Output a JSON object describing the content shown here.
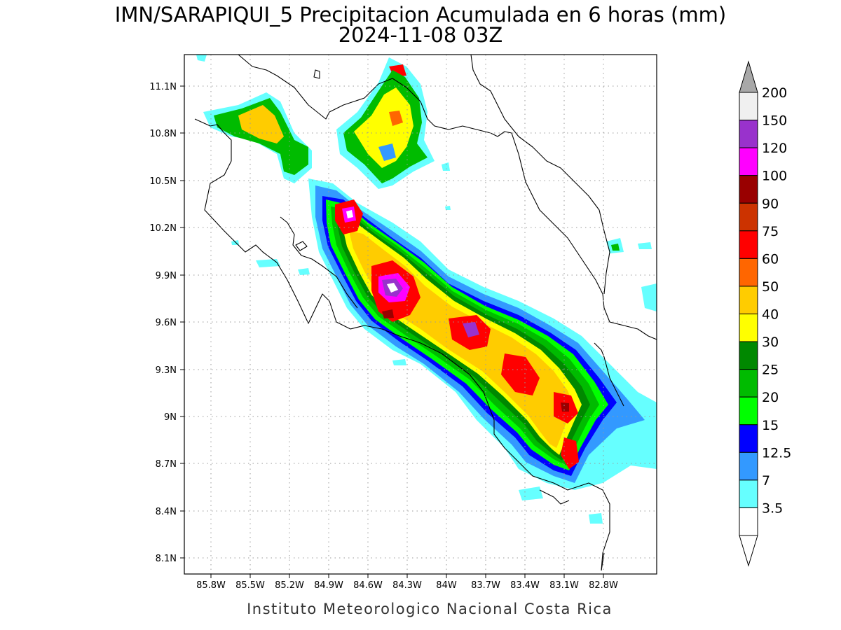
{
  "header": {
    "title": "IMN/SARAPIQUI_5 Precipitacion Acumulada en 6 horas (mm)",
    "subtitle": "2024-11-08 03Z"
  },
  "footer": {
    "credit": "Instituto Meteorologico Nacional Costa Rica"
  },
  "map": {
    "lon_labels": [
      "85.8W",
      "85.5W",
      "85.2W",
      "84.9W",
      "84.6W",
      "84.3W",
      "84W",
      "83.7W",
      "83.4W",
      "83.1W",
      "82.8W"
    ],
    "lat_labels": [
      "11.1N",
      "10.8N",
      "10.5N",
      "10.2N",
      "9.9N",
      "9.6N",
      "9.3N",
      "9N",
      "8.7N",
      "8.4N",
      "8.1N"
    ]
  },
  "colorbar": {
    "levels": [
      {
        "label": "200",
        "color": "#f0f0f0"
      },
      {
        "label": "150",
        "color": "#9932cc"
      },
      {
        "label": "120",
        "color": "#ff00ff"
      },
      {
        "label": "100",
        "color": "#990000"
      },
      {
        "label": "90",
        "color": "#cc3300"
      },
      {
        "label": "75",
        "color": "#ff0000"
      },
      {
        "label": "60",
        "color": "#ff6600"
      },
      {
        "label": "50",
        "color": "#ffcc00"
      },
      {
        "label": "40",
        "color": "#ffff00"
      },
      {
        "label": "30",
        "color": "#008800"
      },
      {
        "label": "25",
        "color": "#00bb00"
      },
      {
        "label": "20",
        "color": "#00ff00"
      },
      {
        "label": "15",
        "color": "#0000ff"
      },
      {
        "label": "12.5",
        "color": "#3399ff"
      },
      {
        "label": "7",
        "color": "#66ffff"
      },
      {
        "label": "3.5",
        "color": "#ffffff"
      }
    ],
    "top_arrow_color": "#a8a8a8",
    "bottom_arrow_color": "#ffffff"
  }
}
